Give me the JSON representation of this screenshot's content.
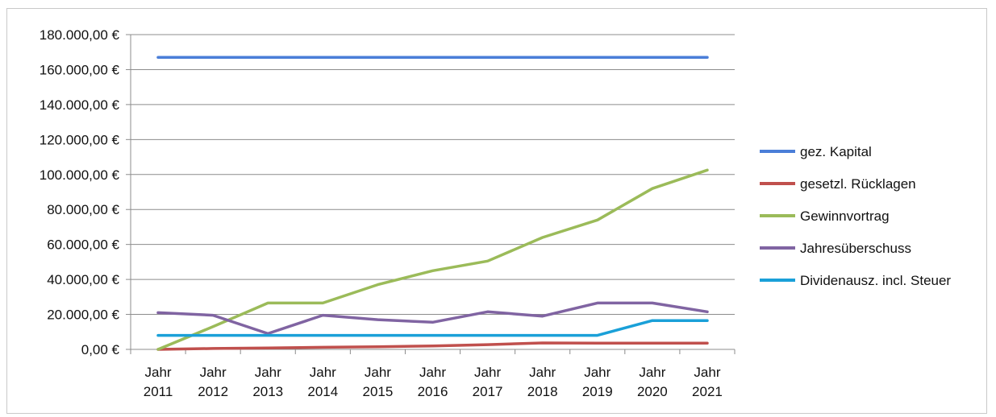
{
  "chart_data": {
    "type": "line",
    "title": "",
    "xlabel": "",
    "ylabel": "",
    "ylim": [
      0,
      180000
    ],
    "y_ticks": [
      "0,00 €",
      "20.000,00 €",
      "40.000,00 €",
      "60.000,00 €",
      "80.000,00 €",
      "100.000,00 €",
      "120.000,00 €",
      "140.000,00 €",
      "160.000,00 €",
      "180.000,00 €"
    ],
    "categories": [
      "Jahr 2011",
      "Jahr 2012",
      "Jahr 2013",
      "Jahr 2014",
      "Jahr 2015",
      "Jahr 2016",
      "Jahr 2017",
      "Jahr 2018",
      "Jahr 2019",
      "Jahr 2020",
      "Jahr 2021"
    ],
    "category_lines": [
      [
        "Jahr",
        "2011"
      ],
      [
        "Jahr",
        "2012"
      ],
      [
        "Jahr",
        "2013"
      ],
      [
        "Jahr",
        "2014"
      ],
      [
        "Jahr",
        "2015"
      ],
      [
        "Jahr",
        "2016"
      ],
      [
        "Jahr",
        "2017"
      ],
      [
        "Jahr",
        "2018"
      ],
      [
        "Jahr",
        "2019"
      ],
      [
        "Jahr",
        "2020"
      ],
      [
        "Jahr",
        "2021"
      ]
    ],
    "grid": true,
    "legend_position": "right",
    "series": [
      {
        "name": "gez. Kapital",
        "color": "#4a7ed8",
        "values": [
          167000,
          167000,
          167000,
          167000,
          167000,
          167000,
          167000,
          167000,
          167000,
          167000,
          167000
        ]
      },
      {
        "name": "gesetzl. Rücklagen",
        "color": "#c0504d",
        "values": [
          0,
          500,
          800,
          1200,
          1500,
          2000,
          2700,
          3700,
          3600,
          3600,
          3600
        ]
      },
      {
        "name": "Gewinnvortrag",
        "color": "#9bbb59",
        "values": [
          0,
          13000,
          26500,
          26500,
          37000,
          45000,
          50500,
          64000,
          74000,
          92000,
          102500
        ]
      },
      {
        "name": "Jahresüberschuss",
        "color": "#8064a2",
        "values": [
          21000,
          19500,
          9000,
          19500,
          17000,
          15500,
          21500,
          19000,
          26500,
          26500,
          21500
        ]
      },
      {
        "name": "Dividenausz. incl. Steuer",
        "color": "#1aa0d8",
        "values": [
          8000,
          8000,
          8000,
          8000,
          8000,
          8000,
          8000,
          8000,
          8000,
          16500,
          16500
        ]
      }
    ]
  }
}
